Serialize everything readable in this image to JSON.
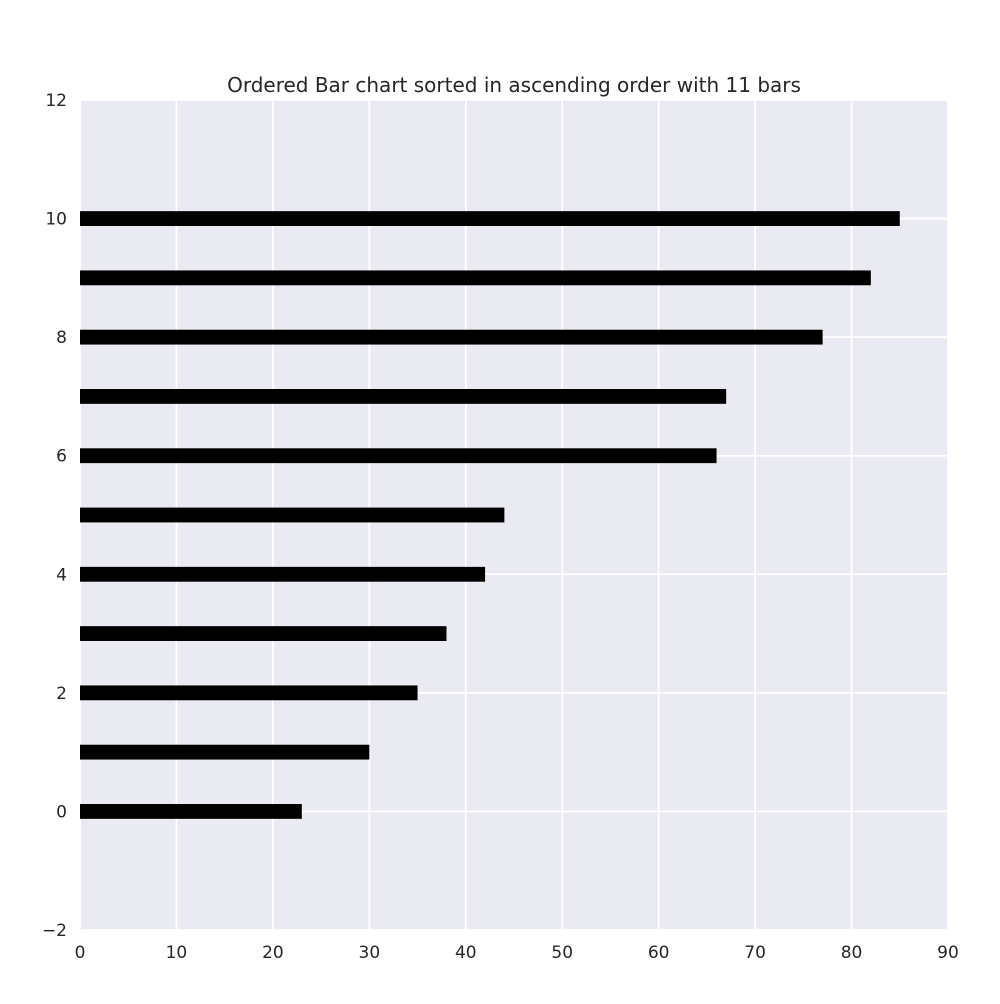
{
  "chart_data": {
    "type": "bar",
    "orientation": "horizontal",
    "title": "Ordered Bar chart sorted in ascending order with 11 bars",
    "xlabel": "",
    "ylabel": "",
    "categories": [
      0,
      1,
      2,
      3,
      4,
      5,
      6,
      7,
      8,
      9,
      10
    ],
    "values": [
      23,
      30,
      35,
      38,
      42,
      44,
      66,
      67,
      77,
      82,
      85
    ],
    "xlim": [
      0,
      90
    ],
    "ylim": [
      -2,
      12
    ],
    "x_ticks": [
      "0",
      "10",
      "20",
      "30",
      "40",
      "50",
      "60",
      "70",
      "80",
      "90"
    ],
    "y_ticks": [
      "−2",
      "0",
      "2",
      "4",
      "6",
      "8",
      "10",
      "12"
    ],
    "grid": true,
    "colors": {
      "bar": "#000000",
      "plot_background": "#EAEAF2",
      "grid": "#FFFFFF",
      "text": "#262626"
    }
  }
}
